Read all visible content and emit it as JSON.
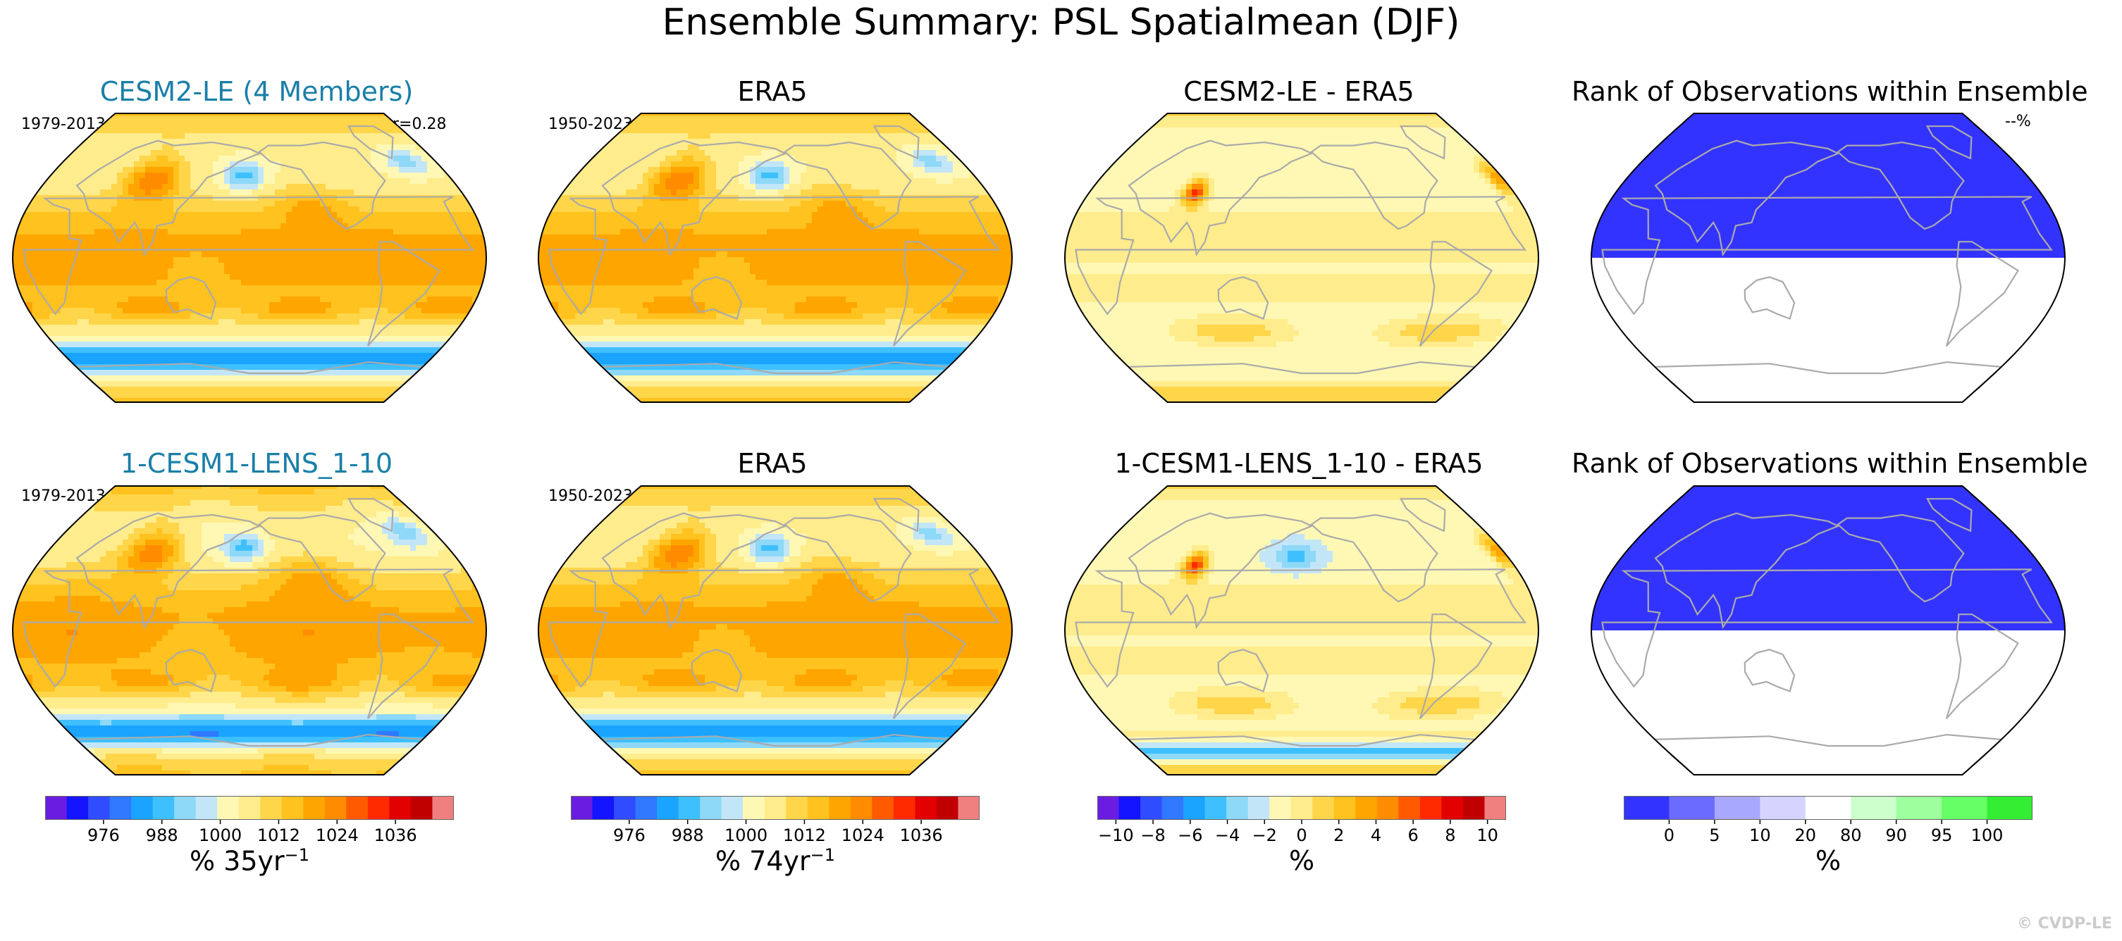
{
  "figure": {
    "title": "Ensemble Summary: PSL Spatialmean (DJF)",
    "credit": "© CVDP-LE"
  },
  "chart_data": [
    {
      "type": "heatmap",
      "title": "CESM2-LE (4 Members)",
      "title_color": "#1a7fa8",
      "period": "1979-2013",
      "stat": "r=0.28",
      "projection": "robinson-pacific-centered",
      "field": "mean sea level pressure (hPa)",
      "colorbar": "mean"
    },
    {
      "type": "heatmap",
      "title": "ERA5",
      "period": "1950-2023",
      "projection": "robinson-pacific-centered",
      "field": "mean sea level pressure (hPa)",
      "colorbar": "mean"
    },
    {
      "type": "heatmap",
      "title": "CESM2-LE - ERA5",
      "projection": "robinson-pacific-centered",
      "field": "difference",
      "colorbar": "diff"
    },
    {
      "type": "heatmap",
      "title": "Rank of Observations within Ensemble",
      "stat": "--%",
      "projection": "robinson-pacific-centered",
      "field": "rank",
      "colorbar": "rank"
    },
    {
      "type": "heatmap",
      "title": "1-CESM1-LENS_1-10",
      "title_color": "#1a7fa8",
      "period": "1979-2013",
      "projection": "robinson-pacific-centered",
      "field": "mean sea level pressure (hPa)",
      "colorbar": "mean"
    },
    {
      "type": "heatmap",
      "title": "ERA5",
      "period": "1950-2023",
      "projection": "robinson-pacific-centered",
      "field": "mean sea level pressure (hPa)",
      "colorbar": "mean"
    },
    {
      "type": "heatmap",
      "title": "1-CESM1-LENS_1-10 - ERA5",
      "projection": "robinson-pacific-centered",
      "field": "difference",
      "colorbar": "diff"
    },
    {
      "type": "heatmap",
      "title": "Rank of Observations within Ensemble",
      "projection": "robinson-pacific-centered",
      "field": "rank",
      "colorbar": "rank"
    }
  ],
  "colorbars": {
    "mean": {
      "colors": [
        "#6a1de0",
        "#1414ff",
        "#2f4dff",
        "#2f78ff",
        "#1aa3ff",
        "#3ec0ff",
        "#8ed8f8",
        "#c2e6f8",
        "#fff8b4",
        "#ffec8c",
        "#ffd54a",
        "#ffc21e",
        "#ffa500",
        "#ff8c00",
        "#ff5a00",
        "#ff2a00",
        "#e20000",
        "#c00000",
        "#f08080"
      ],
      "ticks": [
        976,
        988,
        1000,
        1012,
        1024,
        1036
      ],
      "tick_labels": [
        "976",
        "988",
        "1000",
        "1012",
        "1024",
        "1036"
      ],
      "range": [
        964,
        1048
      ],
      "labels": [
        "% 35yr",
        "% 74yr"
      ],
      "exponent": "−1"
    },
    "diff": {
      "colors": [
        "#6a1de0",
        "#1414ff",
        "#2f4dff",
        "#2f78ff",
        "#1aa3ff",
        "#3ec0ff",
        "#8ed8f8",
        "#c2e6f8",
        "#fff8b4",
        "#ffec8c",
        "#ffd54a",
        "#ffc21e",
        "#ffa500",
        "#ff8c00",
        "#ff5a00",
        "#ff2a00",
        "#e20000",
        "#c00000",
        "#f08080"
      ],
      "ticks": [
        -10,
        -8,
        -6,
        -4,
        -2,
        0,
        2,
        4,
        6,
        8,
        10
      ],
      "tick_labels": [
        "−10",
        "−8",
        "−6",
        "−4",
        "−2",
        "0",
        "2",
        "4",
        "6",
        "8",
        "10"
      ],
      "range": [
        -11,
        11
      ],
      "label": "%"
    },
    "rank": {
      "colors": [
        "#3333ff",
        "#6b6bff",
        "#a8a8ff",
        "#d4d4ff",
        "#ffffff",
        "#ccffcc",
        "#9dff9d",
        "#66ff66",
        "#33ee33"
      ],
      "boundaries": [
        "0",
        "5",
        "10",
        "20",
        "80",
        "90",
        "95",
        "100"
      ],
      "label": "%"
    }
  }
}
